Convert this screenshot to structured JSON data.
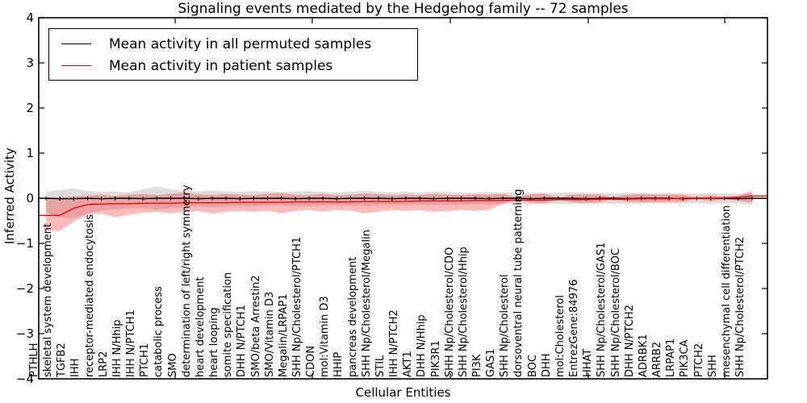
{
  "chart_data": {
    "type": "line",
    "title": "Signaling events mediated by the Hedgehog family -- 72 samples",
    "xlabel": "Cellular Entities",
    "ylabel": "Inferred Activity",
    "ylim": [
      -4,
      4
    ],
    "yticks": [
      4,
      3,
      2,
      1,
      0,
      -1,
      -2,
      -3,
      -4
    ],
    "grid": false,
    "legend_position": "upper left",
    "samples_label": "72 samples",
    "categories": [
      "PTHLH",
      "skeletal system development",
      "TGFB2",
      "IHH",
      "receptor-mediated endocytosis",
      "LRP2",
      "IHH N/Hhip",
      "IHH N/PTCH1",
      "PTCH1",
      "catabolic process",
      "SMO",
      "determination of left/right symmetry",
      "heart development",
      "heart looping",
      "somite specification",
      "DHH N/PTCH1",
      "SMO/beta Arrestin2",
      "SMO/Vitamin D3",
      "Megalin/LRPAP1",
      "SHH Np/Cholesterol/PTCH1",
      "CDON",
      "mol:Vitamin D3",
      "HHIP",
      "pancreas development",
      "SHH Np/Cholesterol/Megalin",
      "STIL",
      "IHH N/PTCH2",
      "AKT1",
      "DHH N/Hhip",
      "PIK3R1",
      "SHH Np/Cholesterol/CDO",
      "SHH Np/Cholesterol/Hhip",
      "PI3K",
      "GAS1",
      "SHH Np/Cholesterol",
      "dorsoventral neural tube patterning",
      "BOC",
      "DHH",
      "mol:Cholesterol",
      "EntrezGene:84976",
      "HHAT",
      "SHH Np/Cholesterol/GAS1",
      "SHH Np/Cholesterol/BOC",
      "DHH N/PTCH2",
      "ADRBK1",
      "ARRB2",
      "LRPAP1",
      "PIK3CA",
      "PTCH2",
      "SHH",
      "mesenchymal cell differentiation",
      "SHH Np/Cholesterol/PTCH2"
    ],
    "series": [
      {
        "name": "Mean activity in all permuted samples",
        "color": "#000000",
        "marker": "vertical-dash",
        "values": [
          0,
          -0.01,
          -0.01,
          0,
          -0.01,
          0,
          0,
          -0.01,
          0,
          0,
          0,
          -0.01,
          0,
          0,
          -0.01,
          0,
          0,
          0,
          -0.01,
          0,
          0,
          -0.01,
          0,
          0,
          0,
          -0.01,
          0,
          0,
          -0.01,
          0,
          0,
          0,
          -0.01,
          0,
          0,
          -0.01,
          0,
          0,
          0,
          -0.01,
          0,
          0,
          -0.01,
          0,
          0,
          0,
          -0.01,
          0,
          0,
          0,
          -0.01,
          0
        ]
      },
      {
        "name": "Mean activity in patient samples",
        "color": "#ff0000",
        "marker": "none",
        "values": [
          -0.38,
          -0.38,
          -0.22,
          -0.14,
          -0.13,
          -0.12,
          -0.12,
          -0.11,
          -0.11,
          -0.11,
          -0.1,
          -0.1,
          -0.1,
          -0.1,
          -0.09,
          -0.09,
          -0.09,
          -0.09,
          -0.08,
          -0.08,
          -0.08,
          -0.08,
          -0.08,
          -0.07,
          -0.07,
          -0.07,
          -0.07,
          -0.06,
          -0.06,
          -0.06,
          -0.06,
          -0.05,
          -0.05,
          -0.05,
          -0.04,
          -0.04,
          -0.04,
          -0.03,
          -0.03,
          -0.03,
          -0.02,
          -0.02,
          -0.02,
          -0.01,
          -0.01,
          -0.01,
          0.0,
          0.0,
          0.0,
          0.01,
          0.02,
          0.05
        ]
      }
    ],
    "bands": [
      {
        "name": "permuted samples range",
        "color": "rgba(0,0,0,0.13)",
        "upper": [
          0.15,
          0.18,
          0.22,
          0.16,
          0.14,
          0.15,
          0.13,
          0.2,
          0.26,
          0.2,
          0.16,
          0.15,
          0.17,
          0.15,
          0.14,
          0.16,
          0.15,
          0.14,
          0.15,
          0.16,
          0.14,
          0.13,
          0.15,
          0.17,
          0.14,
          0.13,
          0.14,
          0.13,
          0.15,
          0.14,
          0.13,
          0.12,
          0.14,
          0.13,
          0.12,
          0.13,
          0.12,
          0.12,
          0.13,
          0.12,
          0.12,
          0.11,
          0.12,
          0.12,
          0.11,
          0.12,
          0.11,
          0.11,
          0.12,
          0.11,
          0.1,
          0.12
        ],
        "lower": [
          -0.3,
          -0.42,
          -0.45,
          -0.33,
          -0.28,
          -0.25,
          -0.22,
          -0.22,
          -0.25,
          -0.22,
          -0.2,
          -0.18,
          -0.2,
          -0.18,
          -0.17,
          -0.18,
          -0.17,
          -0.16,
          -0.17,
          -0.18,
          -0.16,
          -0.15,
          -0.16,
          -0.17,
          -0.15,
          -0.14,
          -0.15,
          -0.14,
          -0.15,
          -0.14,
          -0.14,
          -0.13,
          -0.14,
          -0.13,
          -0.13,
          -0.14,
          -0.13,
          -0.12,
          -0.13,
          -0.12,
          -0.12,
          -0.12,
          -0.12,
          -0.12,
          -0.11,
          -0.12,
          -0.11,
          -0.11,
          -0.12,
          -0.11,
          -0.11,
          -0.15
        ]
      },
      {
        "name": "patient samples range",
        "color": "rgba(255,0,0,0.27)",
        "upper": [
          0.02,
          0.02,
          0.04,
          0.06,
          0.08,
          0.05,
          0.08,
          0.1,
          0.07,
          0.1,
          0.13,
          0.09,
          0.07,
          0.1,
          0.08,
          0.07,
          0.1,
          0.12,
          0.08,
          0.07,
          0.1,
          0.06,
          0.08,
          0.11,
          0.09,
          0.07,
          0.08,
          0.07,
          0.1,
          0.08,
          0.07,
          0.09,
          0.08,
          0.1,
          0.02,
          0.09,
          0.1,
          0.02,
          0.08,
          0.09,
          0.08,
          0.02,
          0.08,
          0.09,
          0.08,
          0.08,
          0.08,
          0.02,
          0.07,
          0.03,
          0.06,
          0.16
        ],
        "lower": [
          -0.72,
          -0.72,
          -0.52,
          -0.36,
          -0.34,
          -0.42,
          -0.36,
          -0.32,
          -0.3,
          -0.33,
          -0.3,
          -0.28,
          -0.34,
          -0.3,
          -0.28,
          -0.3,
          -0.28,
          -0.33,
          -0.28,
          -0.26,
          -0.3,
          -0.26,
          -0.28,
          -0.33,
          -0.3,
          -0.26,
          -0.28,
          -0.26,
          -0.3,
          -0.28,
          -0.26,
          -0.28,
          -0.26,
          -0.12,
          -0.03,
          -0.1,
          -0.11,
          -0.03,
          -0.09,
          -0.1,
          -0.09,
          -0.02,
          -0.08,
          -0.09,
          -0.08,
          -0.08,
          -0.08,
          -0.02,
          -0.06,
          -0.03,
          -0.05,
          -0.1
        ]
      }
    ],
    "zero_line": {
      "y": 0,
      "style": "dotted",
      "color": "#000000"
    },
    "xtick_indices": [
      9.33,
      19.23,
      29.2,
      39.16,
      49.02
    ]
  },
  "legend": {
    "items": [
      {
        "label": "Mean activity in all permuted samples",
        "color": "#000000"
      },
      {
        "label": "Mean activity in patient samples",
        "color": "#ff0000"
      }
    ]
  }
}
